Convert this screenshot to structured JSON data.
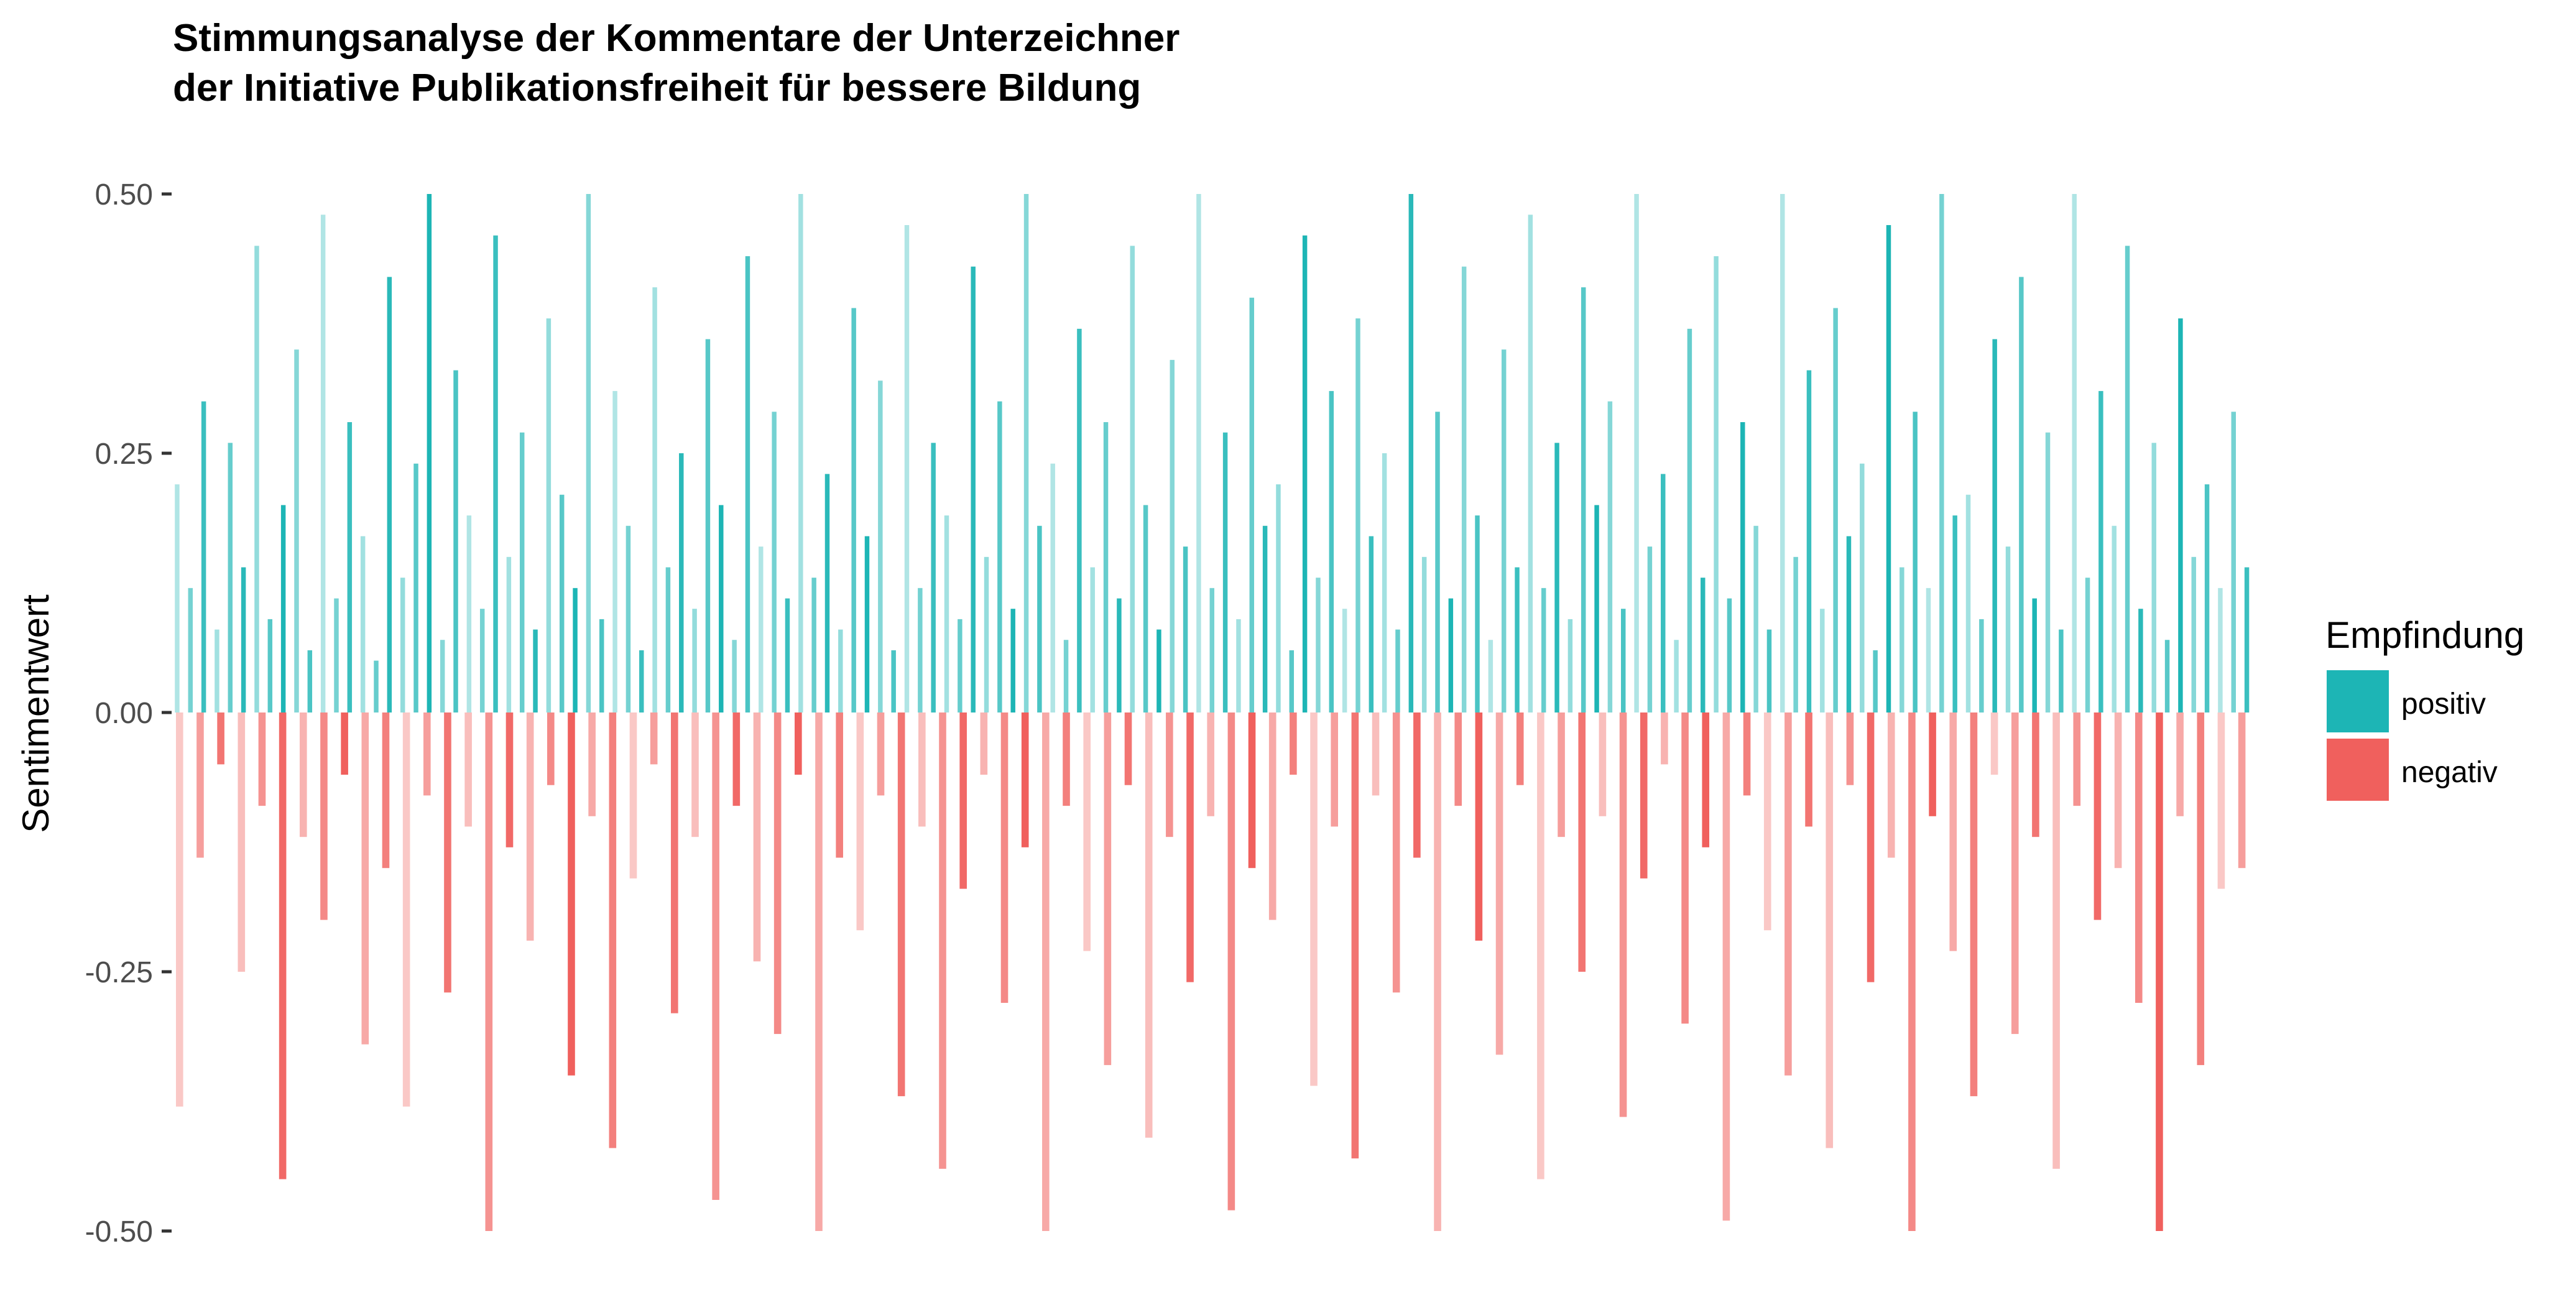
{
  "chart_data": {
    "type": "bar",
    "title_lines": [
      "Stimmungsanalyse der Kommentare der Unterzeichner",
      "der Initiative Publikationsfreiheit für bessere Bildung"
    ],
    "xlabel": "",
    "ylabel": "Sentimentwert",
    "ylim": [
      -0.5,
      0.5
    ],
    "y_ticks": [
      0.5,
      0.25,
      0.0,
      -0.25,
      -0.5
    ],
    "y_tick_labels": [
      "0.50",
      "0.25",
      "0.00",
      "-0.25",
      "-0.50"
    ],
    "grid": false,
    "legend": {
      "title": "Empfindung",
      "placement": "right",
      "items": [
        {
          "label": "positiv",
          "color": "#1db5b5"
        },
        {
          "label": "negativ",
          "color": "#f0605d"
        }
      ]
    },
    "series": [
      {
        "name": "positiv",
        "color": "#1db5b5",
        "values": [
          0.22,
          0.12,
          0.3,
          0.08,
          0.26,
          0.14,
          0.45,
          0.09,
          0.2,
          0.35,
          0.06,
          0.48,
          0.11,
          0.28,
          0.17,
          0.05,
          0.42,
          0.13,
          0.24,
          0.5,
          0.07,
          0.33,
          0.19,
          0.1,
          0.46,
          0.15,
          0.27,
          0.08,
          0.38,
          0.21,
          0.12,
          0.5,
          0.09,
          0.31,
          0.18,
          0.06,
          0.41,
          0.14,
          0.25,
          0.1,
          0.36,
          0.2,
          0.07,
          0.44,
          0.16,
          0.29,
          0.11,
          0.5,
          0.13,
          0.23,
          0.08,
          0.39,
          0.17,
          0.32,
          0.06,
          0.47,
          0.12,
          0.26,
          0.19,
          0.09,
          0.43,
          0.15,
          0.3,
          0.1,
          0.5,
          0.18,
          0.24,
          0.07,
          0.37,
          0.14,
          0.28,
          0.11,
          0.45,
          0.2,
          0.08,
          0.34,
          0.16,
          0.5,
          0.12,
          0.27,
          0.09,
          0.4,
          0.18,
          0.22,
          0.06,
          0.46,
          0.13,
          0.31,
          0.1,
          0.38,
          0.17,
          0.25,
          0.08,
          0.5,
          0.15,
          0.29,
          0.11,
          0.43,
          0.19,
          0.07,
          0.35,
          0.14,
          0.48,
          0.12,
          0.26,
          0.09,
          0.41,
          0.2,
          0.3,
          0.1,
          0.5,
          0.16,
          0.23,
          0.07,
          0.37,
          0.13,
          0.44,
          0.11,
          0.28,
          0.18,
          0.08,
          0.5,
          0.15,
          0.33,
          0.1,
          0.39,
          0.17,
          0.24,
          0.06,
          0.47,
          0.14,
          0.29,
          0.12,
          0.5,
          0.19,
          0.21,
          0.09,
          0.36,
          0.16,
          0.42,
          0.11,
          0.27,
          0.08,
          0.5,
          0.13,
          0.31,
          0.18,
          0.45,
          0.1,
          0.26,
          0.07,
          0.38,
          0.15,
          0.22,
          0.12,
          0.29,
          0.14
        ],
        "points_note": "values read approximately from the plotted bars"
      },
      {
        "name": "negativ",
        "color": "#f0605d",
        "values": [
          -0.38,
          -0.14,
          -0.05,
          -0.25,
          -0.09,
          -0.45,
          -0.12,
          -0.2,
          -0.06,
          -0.32,
          -0.15,
          -0.38,
          -0.08,
          -0.27,
          -0.11,
          -0.5,
          -0.13,
          -0.22,
          -0.07,
          -0.35,
          -0.1,
          -0.42,
          -0.16,
          -0.05,
          -0.29,
          -0.12,
          -0.47,
          -0.09,
          -0.24,
          -0.31,
          -0.06,
          -0.5,
          -0.14,
          -0.21,
          -0.08,
          -0.37,
          -0.11,
          -0.44,
          -0.17,
          -0.06,
          -0.28,
          -0.13,
          -0.5,
          -0.09,
          -0.23,
          -0.34,
          -0.07,
          -0.41,
          -0.12,
          -0.26,
          -0.1,
          -0.48,
          -0.15,
          -0.2,
          -0.06,
          -0.36,
          -0.11,
          -0.43,
          -0.08,
          -0.27,
          -0.14,
          -0.5,
          -0.09,
          -0.22,
          -0.33,
          -0.07,
          -0.45,
          -0.12,
          -0.25,
          -0.1,
          -0.39,
          -0.16,
          -0.05,
          -0.3,
          -0.13,
          -0.49,
          -0.08,
          -0.21,
          -0.35,
          -0.11,
          -0.42,
          -0.07,
          -0.26,
          -0.14,
          -0.5,
          -0.1,
          -0.23,
          -0.37,
          -0.06,
          -0.31,
          -0.12,
          -0.44,
          -0.09,
          -0.2,
          -0.15,
          -0.28,
          -0.5,
          -0.1,
          -0.34,
          -0.17,
          -0.15
        ]
      }
    ]
  },
  "legend": {
    "title": "Empfindung",
    "items": [
      {
        "label": "positiv",
        "color": "#1db5b5"
      },
      {
        "label": "negativ",
        "color": "#f0605d"
      }
    ]
  },
  "axes": {
    "ylabel": "Sentimentwert",
    "y_tick_labels": [
      "0.50",
      "0.25",
      "0.00",
      "-0.25",
      "-0.50"
    ]
  },
  "title": {
    "line1": "Stimmungsanalyse der Kommentare der Unterzeichner",
    "line2": "der Initiative Publikationsfreiheit für bessere Bildung"
  }
}
